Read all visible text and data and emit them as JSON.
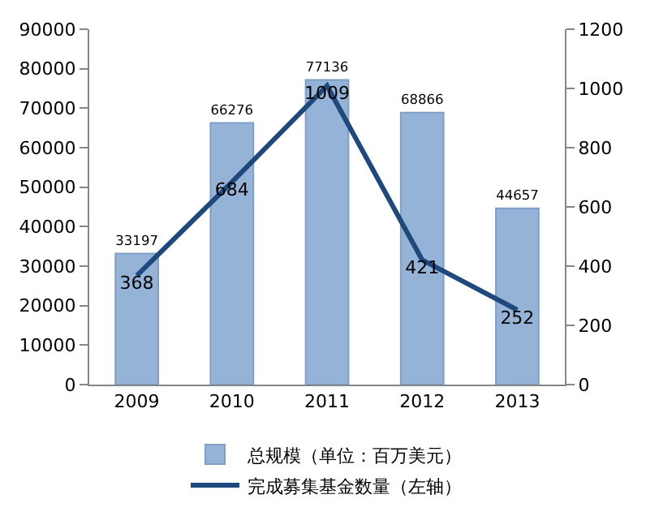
{
  "chart_data": {
    "type": "bar",
    "categories": [
      "2009",
      "2010",
      "2011",
      "2012",
      "2013"
    ],
    "series": [
      {
        "name": "总规模（单位：百万美元）",
        "color": "#95b3d7",
        "values": [
          33197,
          66276,
          77136,
          68866,
          44657
        ]
      },
      {
        "name": "完成募集基金数量（左轴）",
        "type": "line",
        "axis": "y2",
        "color": "#1f497d",
        "values": [
          368,
          684,
          1009,
          421,
          252
        ]
      }
    ],
    "ylim": [
      0,
      90000
    ],
    "yticks": [
      0,
      10000,
      20000,
      30000,
      40000,
      50000,
      60000,
      70000,
      80000,
      90000
    ],
    "y2lim": [
      0,
      1200
    ],
    "y2ticks": [
      0,
      200,
      400,
      600,
      800,
      1000,
      1200
    ],
    "data_labels": true,
    "grid": false,
    "legend": "bottom",
    "marker": "none",
    "line_style": "solid"
  }
}
